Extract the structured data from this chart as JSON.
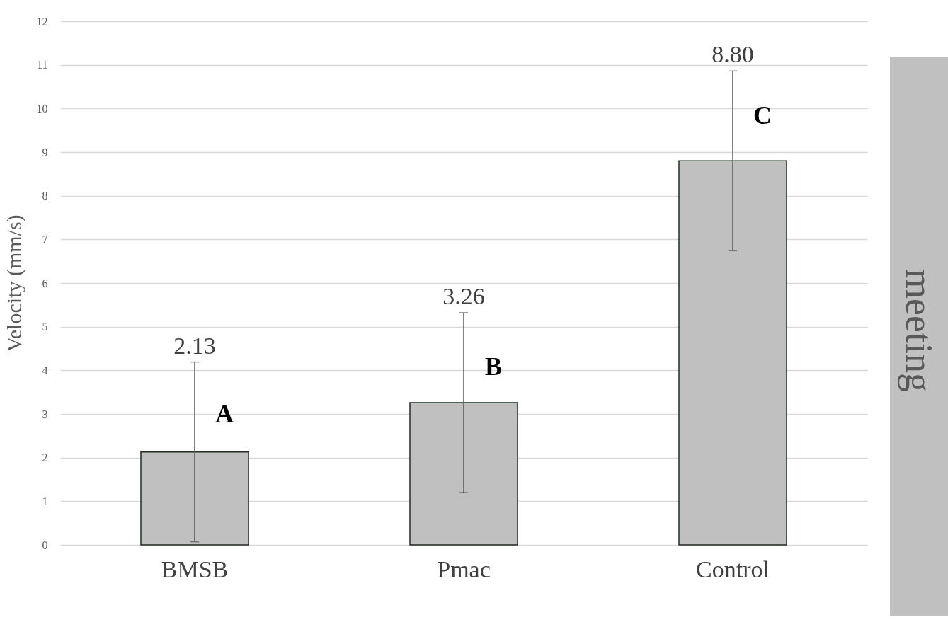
{
  "chart_data": {
    "type": "bar",
    "ylabel": "Velocity (mm/s)",
    "categories": [
      "BMSB",
      "Pmac",
      "Control"
    ],
    "values": [
      2.13,
      3.26,
      8.8
    ],
    "color": "#c0c0c0",
    "errors": [
      2.06,
      2.06,
      2.06
    ],
    "ylim": [
      0,
      12
    ],
    "yticks": [
      0,
      1,
      2,
      3,
      4,
      5,
      6,
      7,
      8,
      9,
      10,
      11,
      12
    ],
    "grid": "y",
    "annotations": [
      {
        "text": "2.13",
        "x": "BMSB",
        "y": 4.19
      },
      {
        "text": "3.26",
        "x": "Pmac",
        "y": 5.32
      },
      {
        "text": "8.80",
        "x": "Control",
        "y": 10.86
      },
      {
        "text": "A",
        "x": "BMSB",
        "y": 2.98
      },
      {
        "text": "B",
        "x": "Pmac",
        "y": 4.07
      },
      {
        "text": "C",
        "x": "Control",
        "y": 9.83
      },
      "meeting"
    ]
  }
}
